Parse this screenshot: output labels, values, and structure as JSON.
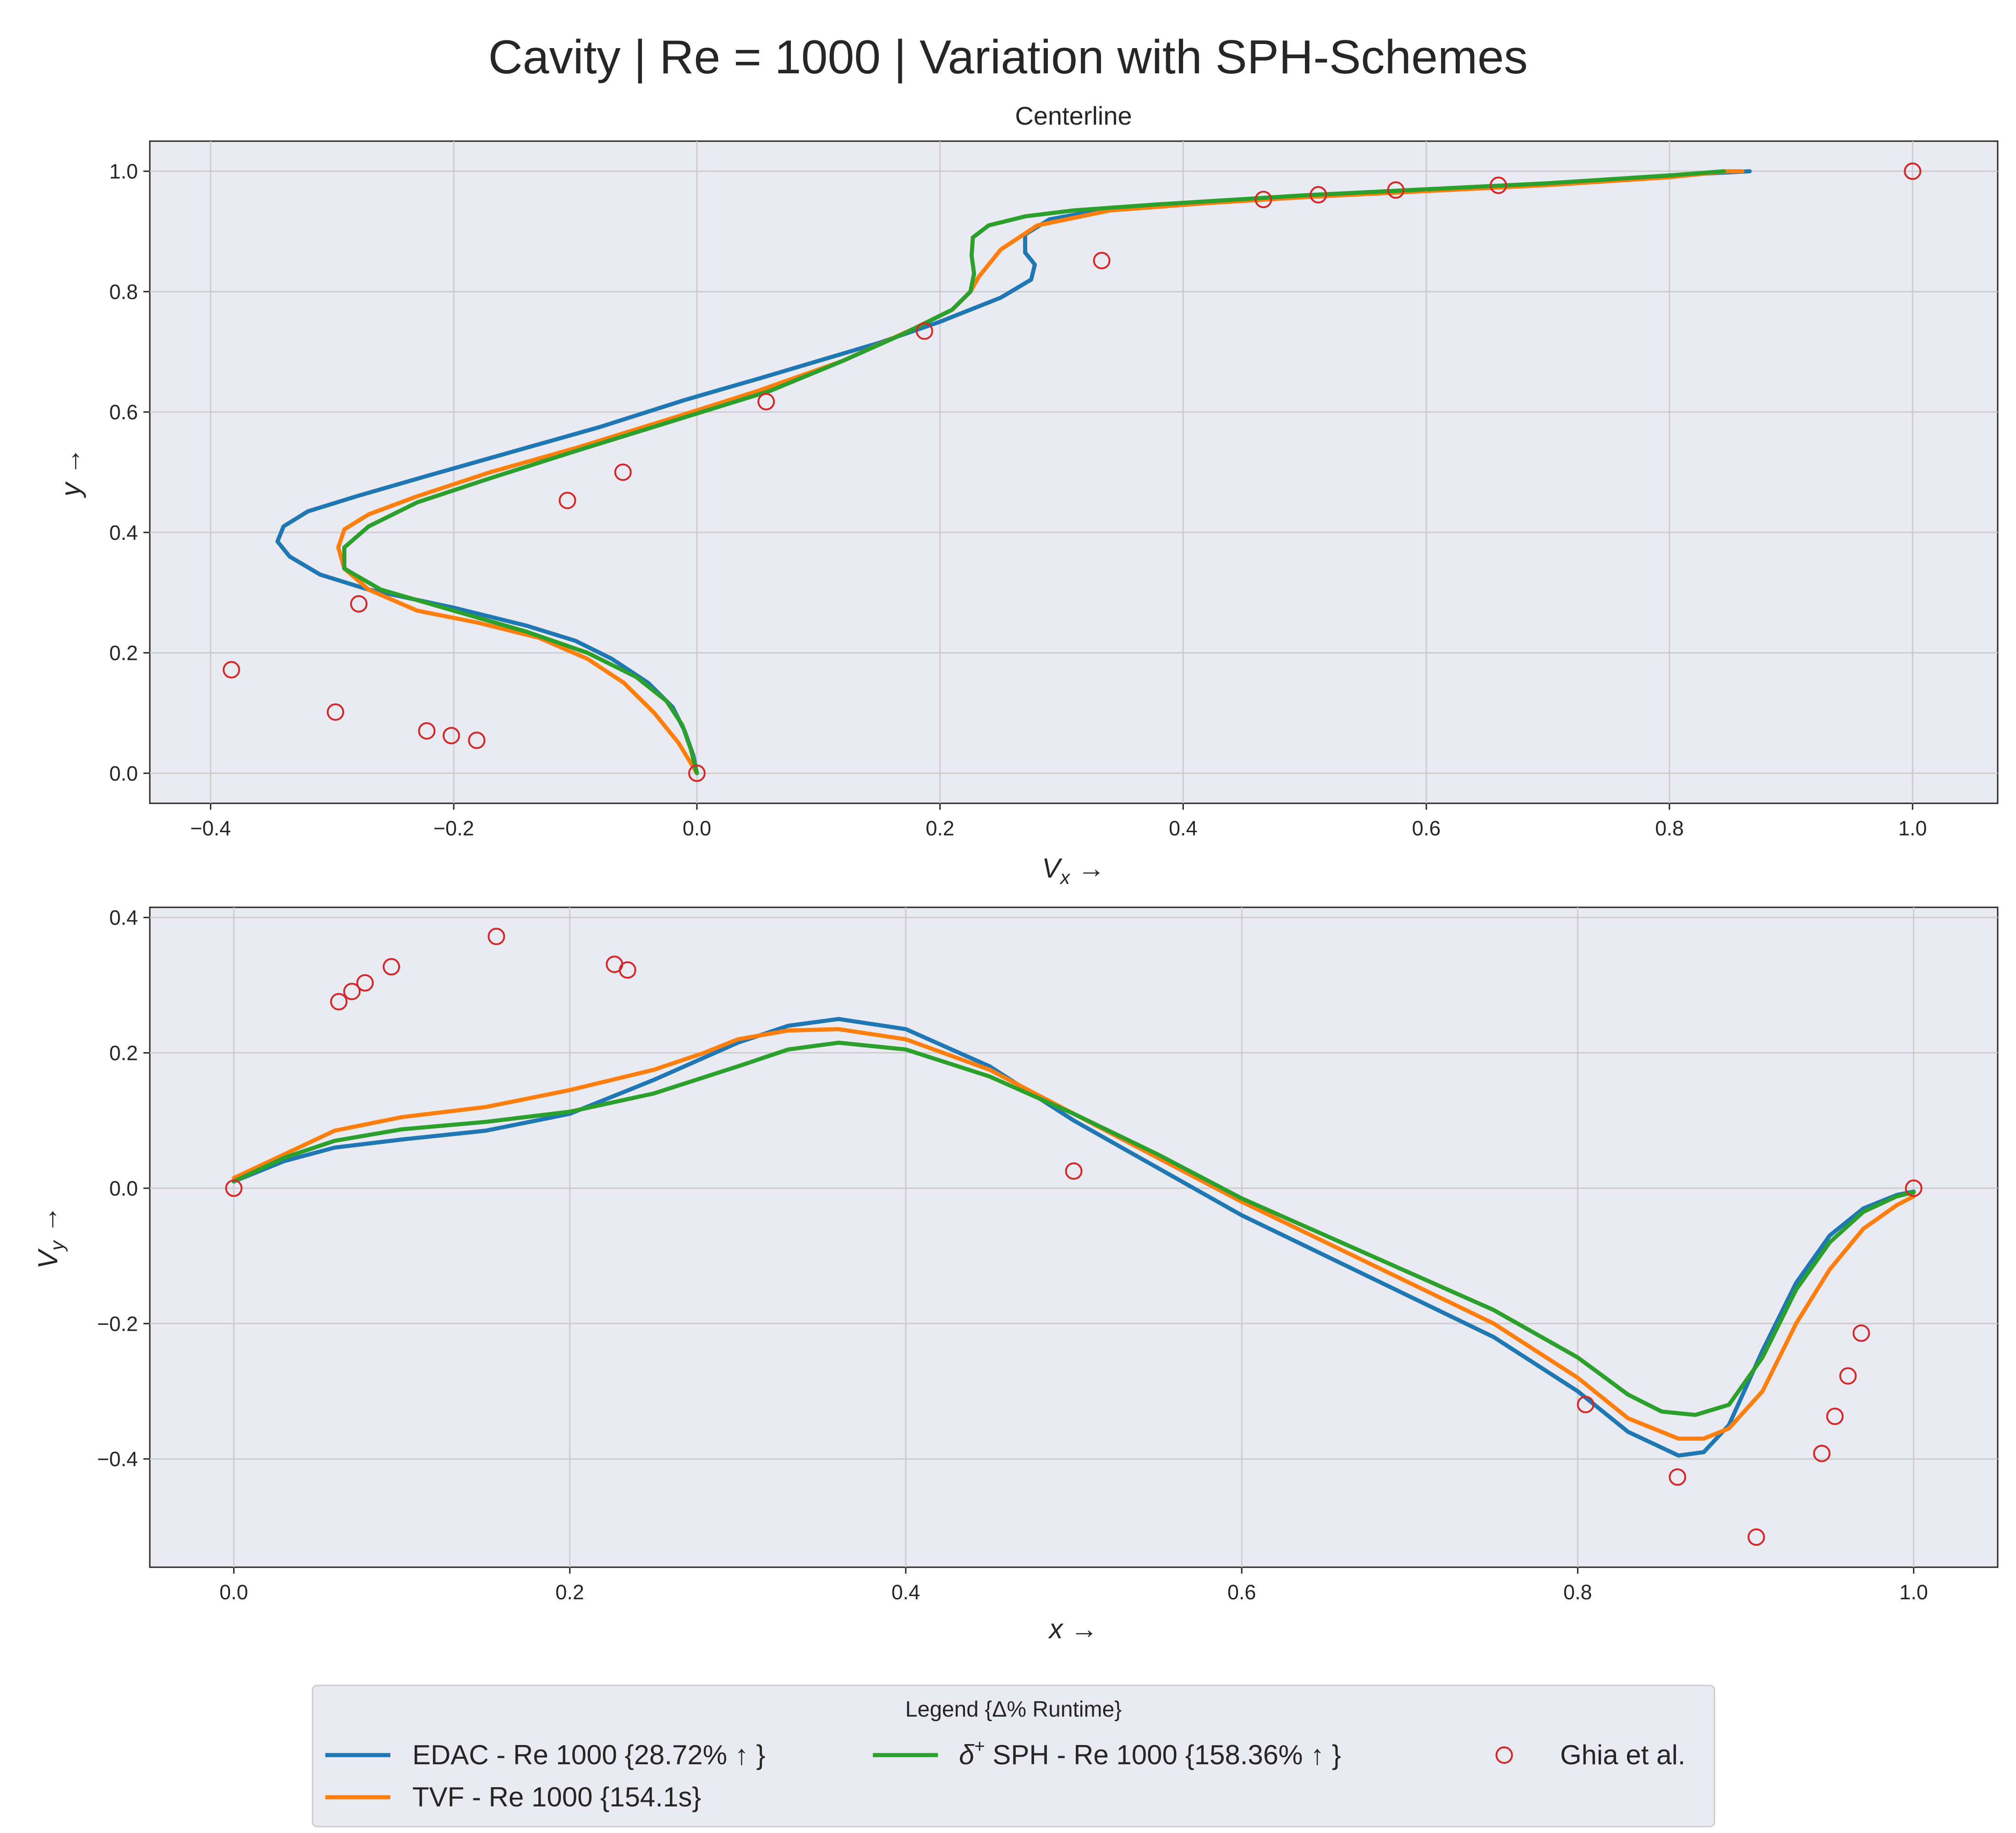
{
  "figure": {
    "title": "Cavity | Re = 1000 | Variation with SPH-Schemes"
  },
  "legend": {
    "title": "Legend {Δ% Runtime}",
    "entries": [
      {
        "key": "edac",
        "label": "EDAC - Re 1000 {28.72% ↑ }"
      },
      {
        "key": "tvf",
        "label": "TVF - Re 1000 {154.1s}"
      },
      {
        "key": "dsph",
        "label_prefix": "δ",
        "label_sup": "+",
        "label_rest": " SPH - Re 1000 {158.36% ↑ }"
      },
      {
        "key": "ghia",
        "label": "Ghia et al."
      }
    ]
  },
  "chart_data": [
    {
      "type": "line",
      "title": "Centerline",
      "xlabel": "V_x →",
      "ylabel": "y →",
      "xlim": [
        -0.45,
        1.07
      ],
      "ylim": [
        -0.05,
        1.05
      ],
      "xticks": [
        "−0.4",
        "−0.2",
        "0.0",
        "0.2",
        "0.4",
        "0.6",
        "0.8",
        "1.0"
      ],
      "xtick_values": [
        -0.4,
        -0.2,
        0.0,
        0.2,
        0.4,
        0.6,
        0.8,
        1.0
      ],
      "yticks": [
        "0.0",
        "0.2",
        "0.4",
        "0.6",
        "0.8",
        "1.0"
      ],
      "ytick_values": [
        0.0,
        0.2,
        0.4,
        0.6,
        0.8,
        1.0
      ],
      "grid": true,
      "series": [
        {
          "name": "EDAC - Re 1000 {28.72% ↑ }",
          "color": "#1f77b4",
          "x": [
            0.0,
            -0.003,
            -0.01,
            -0.02,
            -0.04,
            -0.07,
            -0.1,
            -0.14,
            -0.2,
            -0.27,
            -0.31,
            -0.335,
            -0.345,
            -0.34,
            -0.32,
            -0.28,
            -0.22,
            -0.15,
            -0.08,
            -0.01,
            0.05,
            0.1,
            0.15,
            0.2,
            0.25,
            0.275,
            0.278,
            0.27,
            0.27,
            0.29,
            0.33,
            0.4,
            0.5,
            0.6,
            0.7,
            0.8,
            0.866
          ],
          "y": [
            0.0,
            0.03,
            0.07,
            0.11,
            0.15,
            0.19,
            0.22,
            0.245,
            0.275,
            0.305,
            0.33,
            0.36,
            0.385,
            0.41,
            0.435,
            0.46,
            0.495,
            0.535,
            0.575,
            0.62,
            0.655,
            0.685,
            0.715,
            0.75,
            0.79,
            0.82,
            0.845,
            0.865,
            0.895,
            0.92,
            0.935,
            0.947,
            0.96,
            0.97,
            0.98,
            0.993,
            1.0
          ]
        },
        {
          "name": "TVF - Re 1000 {154.1s}",
          "color": "#ff7f0e",
          "x": [
            0.0,
            -0.015,
            -0.035,
            -0.06,
            -0.09,
            -0.13,
            -0.18,
            -0.23,
            -0.27,
            -0.29,
            -0.295,
            -0.29,
            -0.27,
            -0.23,
            -0.17,
            -0.1,
            -0.02,
            0.05,
            0.12,
            0.18,
            0.21,
            0.225,
            0.232,
            0.25,
            0.28,
            0.34,
            0.42,
            0.5,
            0.6,
            0.7,
            0.8,
            0.848,
            0.86
          ],
          "y": [
            0.0,
            0.05,
            0.1,
            0.15,
            0.19,
            0.225,
            0.25,
            0.27,
            0.305,
            0.34,
            0.375,
            0.405,
            0.43,
            0.46,
            0.5,
            0.54,
            0.59,
            0.635,
            0.685,
            0.74,
            0.77,
            0.8,
            0.825,
            0.87,
            0.91,
            0.935,
            0.947,
            0.957,
            0.967,
            0.977,
            0.99,
            1.0,
            1.0
          ]
        },
        {
          "name": "δ+ SPH - Re 1000 {158.36% ↑ }",
          "color": "#2ca02c",
          "x": [
            0.0,
            -0.005,
            -0.012,
            -0.025,
            -0.05,
            -0.09,
            -0.14,
            -0.2,
            -0.26,
            -0.29,
            -0.29,
            -0.27,
            -0.23,
            -0.17,
            -0.1,
            -0.02,
            0.06,
            0.12,
            0.17,
            0.21,
            0.225,
            0.228,
            0.226,
            0.227,
            0.24,
            0.27,
            0.31,
            0.38,
            0.5,
            0.6,
            0.7,
            0.8,
            0.845
          ],
          "y": [
            0.0,
            0.04,
            0.08,
            0.12,
            0.16,
            0.2,
            0.235,
            0.27,
            0.305,
            0.34,
            0.375,
            0.41,
            0.45,
            0.49,
            0.535,
            0.585,
            0.635,
            0.685,
            0.73,
            0.77,
            0.8,
            0.83,
            0.86,
            0.89,
            0.91,
            0.925,
            0.935,
            0.945,
            0.96,
            0.97,
            0.98,
            0.993,
            1.0
          ]
        }
      ],
      "scatter": {
        "name": "Ghia et al.",
        "color": "#d62728",
        "x": [
          1.0,
          0.6593,
          0.5749,
          0.5112,
          0.466,
          0.333,
          0.1872,
          0.057,
          -0.0608,
          -0.1065,
          -0.2781,
          -0.3829,
          -0.2973,
          -0.2222,
          -0.202,
          -0.1811,
          0.0
        ],
        "y": [
          1.0,
          0.9766,
          0.9688,
          0.9609,
          0.9531,
          0.8516,
          0.7344,
          0.6172,
          0.5,
          0.4531,
          0.2813,
          0.1719,
          0.1016,
          0.0703,
          0.0625,
          0.0547,
          0.0
        ]
      }
    },
    {
      "type": "line",
      "title": "",
      "xlabel": "x →",
      "ylabel": "V_y →",
      "xlim": [
        -0.05,
        1.05
      ],
      "ylim": [
        -0.56,
        0.415
      ],
      "xticks": [
        "0.0",
        "0.2",
        "0.4",
        "0.6",
        "0.8",
        "1.0"
      ],
      "xtick_values": [
        0.0,
        0.2,
        0.4,
        0.6,
        0.8,
        1.0
      ],
      "yticks": [
        "−0.4",
        "−0.2",
        "0.0",
        "0.2",
        "0.4"
      ],
      "ytick_values": [
        -0.4,
        -0.2,
        0.0,
        0.2,
        0.4
      ],
      "grid": true,
      "series": [
        {
          "name": "EDAC - Re 1000 {28.72% ↑ }",
          "color": "#1f77b4",
          "x": [
            0.0,
            0.03,
            0.06,
            0.1,
            0.15,
            0.2,
            0.25,
            0.3,
            0.33,
            0.36,
            0.4,
            0.45,
            0.5,
            0.55,
            0.6,
            0.65,
            0.7,
            0.75,
            0.8,
            0.83,
            0.86,
            0.875,
            0.89,
            0.91,
            0.93,
            0.95,
            0.97,
            0.99,
            1.0
          ],
          "y": [
            0.01,
            0.04,
            0.06,
            0.072,
            0.085,
            0.11,
            0.16,
            0.215,
            0.24,
            0.25,
            0.235,
            0.18,
            0.1,
            0.03,
            -0.04,
            -0.1,
            -0.16,
            -0.22,
            -0.3,
            -0.36,
            -0.395,
            -0.39,
            -0.35,
            -0.24,
            -0.14,
            -0.07,
            -0.03,
            -0.01,
            -0.005
          ]
        },
        {
          "name": "TVF - Re 1000 {154.1s}",
          "color": "#ff7f0e",
          "x": [
            0.0,
            0.03,
            0.06,
            0.1,
            0.15,
            0.2,
            0.25,
            0.28,
            0.3,
            0.33,
            0.36,
            0.4,
            0.45,
            0.5,
            0.55,
            0.6,
            0.65,
            0.7,
            0.75,
            0.8,
            0.83,
            0.86,
            0.875,
            0.89,
            0.91,
            0.93,
            0.95,
            0.97,
            0.99,
            1.0
          ],
          "y": [
            0.015,
            0.05,
            0.085,
            0.105,
            0.12,
            0.145,
            0.175,
            0.2,
            0.22,
            0.233,
            0.235,
            0.22,
            0.175,
            0.11,
            0.045,
            -0.02,
            -0.08,
            -0.14,
            -0.2,
            -0.28,
            -0.34,
            -0.37,
            -0.37,
            -0.355,
            -0.3,
            -0.2,
            -0.12,
            -0.06,
            -0.025,
            -0.012
          ]
        },
        {
          "name": "δ+ SPH - Re 1000 {158.36% ↑ }",
          "color": "#2ca02c",
          "x": [
            0.0,
            0.03,
            0.06,
            0.1,
            0.15,
            0.2,
            0.25,
            0.3,
            0.33,
            0.36,
            0.4,
            0.45,
            0.5,
            0.55,
            0.6,
            0.65,
            0.7,
            0.75,
            0.8,
            0.83,
            0.85,
            0.87,
            0.89,
            0.91,
            0.93,
            0.95,
            0.97,
            0.99,
            1.0
          ],
          "y": [
            0.01,
            0.045,
            0.07,
            0.087,
            0.098,
            0.113,
            0.14,
            0.18,
            0.205,
            0.215,
            0.205,
            0.165,
            0.11,
            0.05,
            -0.015,
            -0.07,
            -0.125,
            -0.18,
            -0.25,
            -0.305,
            -0.33,
            -0.335,
            -0.32,
            -0.25,
            -0.15,
            -0.08,
            -0.035,
            -0.012,
            -0.006
          ]
        }
      ],
      "scatter": {
        "name": "Ghia et al.",
        "color": "#d62728",
        "x": [
          0.0,
          0.0625,
          0.0703,
          0.0781,
          0.0938,
          0.1563,
          0.2266,
          0.2344,
          0.5,
          0.8047,
          0.8594,
          0.9063,
          0.9453,
          0.9531,
          0.9609,
          0.9688,
          1.0
        ],
        "y": [
          0.0,
          0.2756,
          0.2907,
          0.3034,
          0.3272,
          0.372,
          0.3308,
          0.3224,
          0.0253,
          -0.3196,
          -0.4268,
          -0.5155,
          -0.3919,
          -0.3371,
          -0.2774,
          -0.2142,
          0.0
        ]
      }
    }
  ]
}
